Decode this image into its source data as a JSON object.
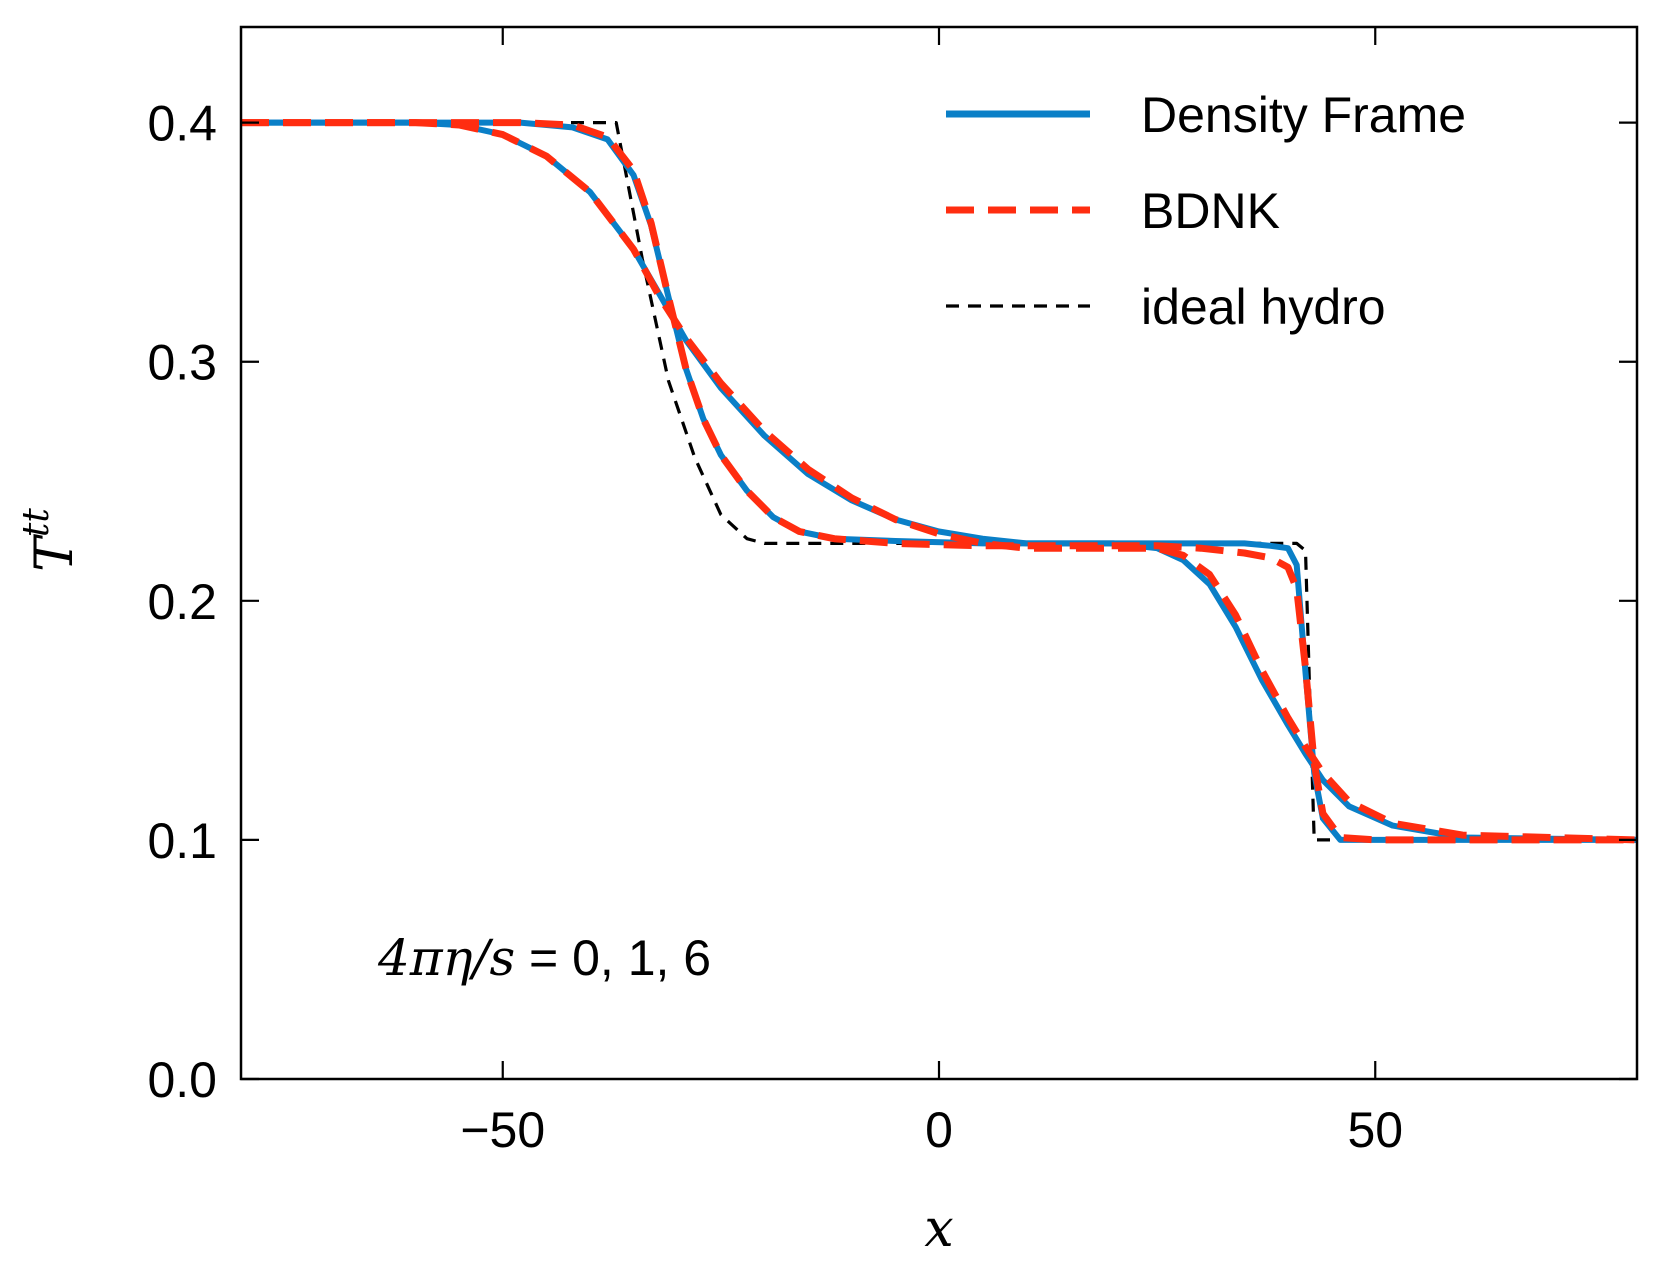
{
  "chart_data": {
    "type": "line",
    "title": "",
    "xlabel": "x",
    "ylabel": "T",
    "ylabel_sup": "tt",
    "xlim": [
      -80,
      80
    ],
    "ylim": [
      0.0,
      0.44
    ],
    "xticks": [
      -50,
      0,
      50
    ],
    "xtick_labels": [
      "−50",
      "0",
      "50"
    ],
    "yticks": [
      0.0,
      0.1,
      0.2,
      0.3,
      0.4
    ],
    "ytick_labels": [
      "0.0",
      "0.1",
      "0.2",
      "0.3",
      "0.4"
    ],
    "grid": false,
    "legend_position": "top-right",
    "annotation": "4πη/s = 0, 1, 6",
    "annotation_parts": {
      "math": "4πη/s",
      "rest": " = 0, 1, 6"
    },
    "series": [
      {
        "name": "ideal hydro",
        "legend_label": "ideal hydro",
        "viscosity": 0,
        "color": "#000000",
        "style": "dashed",
        "x": [
          -80,
          -37,
          -34,
          -31,
          -28,
          -25,
          -22,
          -20,
          41,
          42,
          42.5,
          43,
          80
        ],
        "y": [
          0.4,
          0.4,
          0.343,
          0.292,
          0.26,
          0.236,
          0.226,
          0.224,
          0.224,
          0.221,
          0.16,
          0.1,
          0.1
        ]
      },
      {
        "name": "Density Frame (4πη/s=1)",
        "legend_label": "Density Frame",
        "viscosity": 1,
        "color": "#0a7fc7",
        "style": "solid",
        "x": [
          -80,
          -48,
          -42,
          -38,
          -35,
          -33,
          -31,
          -29,
          -27,
          -25,
          -22,
          -19,
          -16,
          -12,
          -5,
          5,
          15,
          25,
          30,
          35,
          38,
          40,
          41,
          42,
          43,
          44,
          46,
          50,
          55,
          80
        ],
        "y": [
          0.4,
          0.4,
          0.398,
          0.393,
          0.378,
          0.357,
          0.327,
          0.297,
          0.276,
          0.261,
          0.246,
          0.235,
          0.229,
          0.226,
          0.225,
          0.224,
          0.224,
          0.224,
          0.224,
          0.224,
          0.223,
          0.222,
          0.215,
          0.17,
          0.128,
          0.109,
          0.1,
          0.1,
          0.1,
          0.1
        ]
      },
      {
        "name": "Density Frame (4πη/s=6)",
        "legend_label": "Density Frame",
        "viscosity": 6,
        "color": "#0a7fc7",
        "style": "solid",
        "x": [
          -80,
          -60,
          -55,
          -50,
          -45,
          -40,
          -35,
          -32,
          -29,
          -25,
          -20,
          -15,
          -10,
          -5,
          0,
          5,
          10,
          20,
          25,
          28,
          31,
          34,
          37,
          40,
          42,
          44,
          47,
          52,
          60,
          80
        ],
        "y": [
          0.4,
          0.4,
          0.399,
          0.395,
          0.386,
          0.371,
          0.347,
          0.328,
          0.309,
          0.289,
          0.269,
          0.253,
          0.242,
          0.234,
          0.229,
          0.226,
          0.224,
          0.224,
          0.222,
          0.217,
          0.207,
          0.189,
          0.167,
          0.148,
          0.136,
          0.125,
          0.114,
          0.106,
          0.101,
          0.1
        ]
      },
      {
        "name": "BDNK (4πη/s=1)",
        "legend_label": "BDNK",
        "viscosity": 1,
        "color": "#ff2d10",
        "style": "dashed",
        "x": [
          -80,
          -48,
          -42,
          -38,
          -35,
          -33,
          -31,
          -29,
          -27,
          -25,
          -22,
          -19,
          -16,
          -12,
          -5,
          5,
          15,
          25,
          30,
          35,
          38,
          40,
          41,
          42,
          43,
          44,
          46,
          50,
          55,
          80
        ],
        "y": [
          0.4,
          0.4,
          0.399,
          0.394,
          0.38,
          0.358,
          0.327,
          0.297,
          0.276,
          0.261,
          0.246,
          0.235,
          0.229,
          0.226,
          0.224,
          0.223,
          0.223,
          0.223,
          0.222,
          0.22,
          0.218,
          0.214,
          0.205,
          0.172,
          0.132,
          0.111,
          0.101,
          0.1,
          0.1,
          0.1
        ]
      },
      {
        "name": "BDNK (4πη/s=6)",
        "legend_label": "BDNK",
        "viscosity": 6,
        "color": "#ff2d10",
        "style": "dashed",
        "x": [
          -80,
          -60,
          -55,
          -50,
          -45,
          -40,
          -35,
          -32,
          -29,
          -25,
          -20,
          -15,
          -10,
          -5,
          0,
          5,
          10,
          20,
          25,
          28,
          31,
          34,
          37,
          40,
          42,
          44,
          47,
          52,
          60,
          80
        ],
        "y": [
          0.4,
          0.4,
          0.399,
          0.395,
          0.386,
          0.371,
          0.347,
          0.327,
          0.31,
          0.291,
          0.271,
          0.255,
          0.243,
          0.234,
          0.228,
          0.224,
          0.222,
          0.222,
          0.222,
          0.219,
          0.211,
          0.194,
          0.171,
          0.151,
          0.139,
          0.128,
          0.116,
          0.107,
          0.102,
          0.1
        ]
      }
    ],
    "legend": [
      {
        "label": "Density Frame",
        "color": "#0a7fc7",
        "style": "solid"
      },
      {
        "label": "BDNK",
        "color": "#ff2d10",
        "style": "dashed"
      },
      {
        "label": "ideal hydro",
        "color": "#000000",
        "style": "dashed-thin"
      }
    ]
  }
}
